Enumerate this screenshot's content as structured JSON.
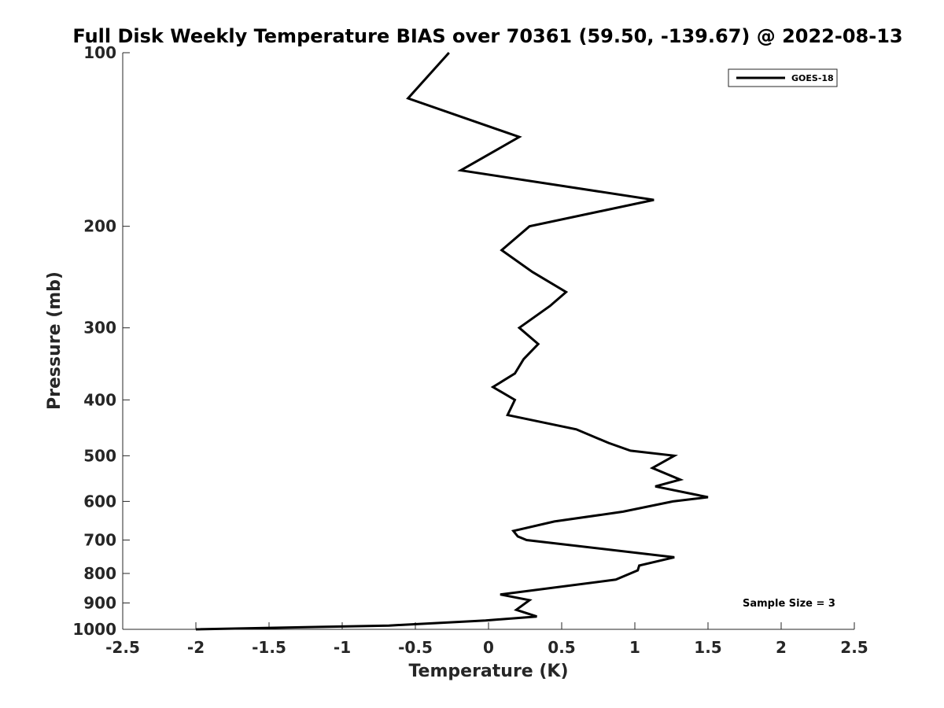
{
  "chart_data": {
    "type": "line",
    "title": "Full Disk Weekly Temperature BIAS over 70361 (59.50, -139.67) @ 2022-08-13",
    "xlabel": "Temperature (K)",
    "ylabel": "Pressure (mb)",
    "xlim": [
      -2.5,
      2.5
    ],
    "ylim": [
      1000,
      100
    ],
    "yscale": "log",
    "y_reversed": true,
    "grid": false,
    "x_ticks": [
      -2.5,
      -2,
      -1.5,
      -1,
      -0.5,
      0,
      0.5,
      1,
      1.5,
      2,
      2.5
    ],
    "x_tick_labels": [
      "-2.5",
      "-2",
      "-1.5",
      "-1",
      "-0.5",
      "0",
      "0.5",
      "1",
      "1.5",
      "2",
      "2.5"
    ],
    "y_ticks": [
      100,
      200,
      300,
      400,
      500,
      600,
      700,
      800,
      900,
      1000
    ],
    "y_tick_labels": [
      "100",
      "200",
      "300",
      "400",
      "500",
      "600",
      "700",
      "800",
      "900",
      "1000"
    ],
    "legend_position": "top-right",
    "series": [
      {
        "name": "GOES-18",
        "color": "#000000",
        "points": [
          {
            "x": -0.27,
            "y": 100
          },
          {
            "x": -0.55,
            "y": 120
          },
          {
            "x": 0.21,
            "y": 140
          },
          {
            "x": -0.19,
            "y": 160
          },
          {
            "x": 1.13,
            "y": 180
          },
          {
            "x": 0.28,
            "y": 200
          },
          {
            "x": 0.09,
            "y": 220
          },
          {
            "x": 0.3,
            "y": 240
          },
          {
            "x": 0.53,
            "y": 260
          },
          {
            "x": 0.42,
            "y": 275
          },
          {
            "x": 0.21,
            "y": 300
          },
          {
            "x": 0.34,
            "y": 320
          },
          {
            "x": 0.24,
            "y": 340
          },
          {
            "x": 0.18,
            "y": 360
          },
          {
            "x": 0.03,
            "y": 380
          },
          {
            "x": 0.18,
            "y": 400
          },
          {
            "x": 0.13,
            "y": 425
          },
          {
            "x": 0.6,
            "y": 450
          },
          {
            "x": 0.82,
            "y": 475
          },
          {
            "x": 0.97,
            "y": 490
          },
          {
            "x": 1.27,
            "y": 500
          },
          {
            "x": 1.12,
            "y": 525
          },
          {
            "x": 1.31,
            "y": 550
          },
          {
            "x": 1.14,
            "y": 565
          },
          {
            "x": 1.5,
            "y": 590
          },
          {
            "x": 1.26,
            "y": 600
          },
          {
            "x": 0.92,
            "y": 625
          },
          {
            "x": 0.45,
            "y": 650
          },
          {
            "x": 0.17,
            "y": 675
          },
          {
            "x": 0.2,
            "y": 690
          },
          {
            "x": 0.26,
            "y": 700
          },
          {
            "x": 1.27,
            "y": 750
          },
          {
            "x": 1.03,
            "y": 775
          },
          {
            "x": 1.02,
            "y": 790
          },
          {
            "x": 0.87,
            "y": 820
          },
          {
            "x": 0.08,
            "y": 870
          },
          {
            "x": 0.28,
            "y": 890
          },
          {
            "x": 0.19,
            "y": 925
          },
          {
            "x": 0.33,
            "y": 950
          },
          {
            "x": -0.02,
            "y": 965
          },
          {
            "x": -0.68,
            "y": 985
          },
          {
            "x": -2.0,
            "y": 1000
          }
        ]
      }
    ],
    "annotations": [
      {
        "text": "Sample Size = 3",
        "position": "bottom-right"
      }
    ]
  }
}
